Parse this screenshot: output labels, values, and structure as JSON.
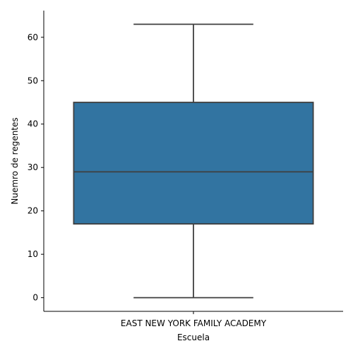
{
  "chart_data": {
    "type": "box",
    "title": "",
    "xlabel": "Escuela",
    "ylabel": "Nuemro de regentes",
    "categories": [
      "EAST NEW YORK FAMILY ACADEMY"
    ],
    "boxes": [
      {
        "category": "EAST NEW YORK FAMILY ACADEMY",
        "min": 0,
        "q1": 17,
        "median": 29,
        "q3": 45,
        "max": 63
      }
    ],
    "yticks": [
      0,
      10,
      20,
      30,
      40,
      50,
      60
    ],
    "ylim": [
      -3.15,
      66.15
    ],
    "grid": false,
    "legend": "none",
    "box_color": "#3274a1",
    "line_color": "#3f3f3f"
  }
}
